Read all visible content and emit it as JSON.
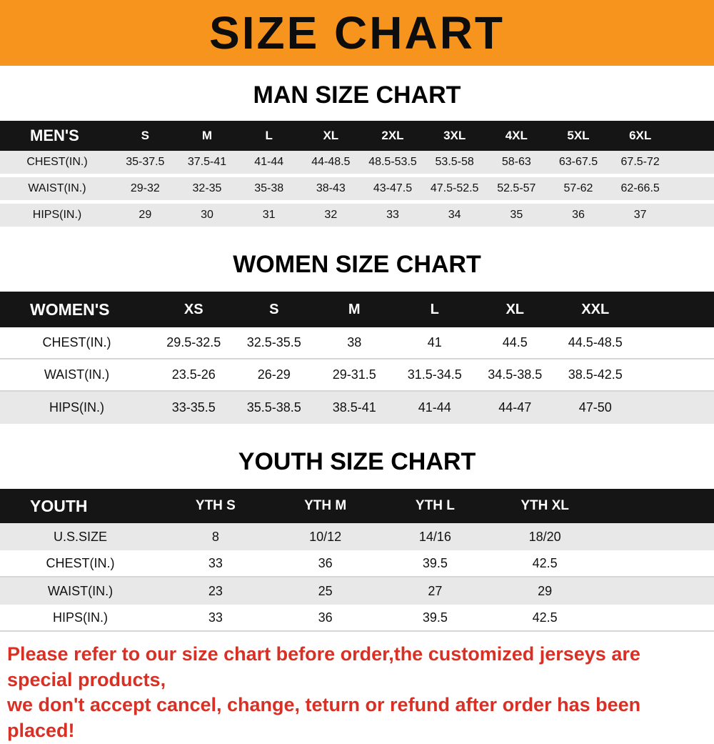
{
  "banner": {
    "title": "SIZE CHART"
  },
  "men": {
    "heading": "MAN SIZE CHART",
    "label": "MEN'S",
    "columns": [
      "S",
      "M",
      "L",
      "XL",
      "2XL",
      "3XL",
      "4XL",
      "5XL",
      "6XL"
    ],
    "rows": [
      {
        "label": "CHEST(IN.)",
        "values": [
          "35-37.5",
          "37.5-41",
          "41-44",
          "44-48.5",
          "48.5-53.5",
          "53.5-58",
          "58-63",
          "63-67.5",
          "67.5-72"
        ]
      },
      {
        "label": "WAIST(IN.)",
        "values": [
          "29-32",
          "32-35",
          "35-38",
          "38-43",
          "43-47.5",
          "47.5-52.5",
          "52.5-57",
          "57-62",
          "62-66.5"
        ]
      },
      {
        "label": "HIPS(IN.)",
        "values": [
          "29",
          "30",
          "31",
          "32",
          "33",
          "34",
          "35",
          "36",
          "37"
        ]
      }
    ]
  },
  "women": {
    "heading": "WOMEN SIZE CHART",
    "label": "WOMEN'S",
    "columns": [
      "XS",
      "S",
      "M",
      "L",
      "XL",
      "XXL"
    ],
    "rows": [
      {
        "label": "CHEST(IN.)",
        "values": [
          "29.5-32.5",
          "32.5-35.5",
          "38",
          "41",
          "44.5",
          "44.5-48.5"
        ]
      },
      {
        "label": "WAIST(IN.)",
        "values": [
          "23.5-26",
          "26-29",
          "29-31.5",
          "31.5-34.5",
          "34.5-38.5",
          "38.5-42.5"
        ]
      },
      {
        "label": "HIPS(IN.)",
        "values": [
          "33-35.5",
          "35.5-38.5",
          "38.5-41",
          "41-44",
          "44-47",
          "47-50"
        ]
      }
    ]
  },
  "youth": {
    "heading": "YOUTH SIZE CHART",
    "label": "YOUTH",
    "columns": [
      "YTH S",
      "YTH M",
      "YTH L",
      "YTH XL"
    ],
    "rows": [
      {
        "label": "U.S.SIZE",
        "values": [
          "8",
          "10/12",
          "14/16",
          "18/20"
        ]
      },
      {
        "label": "CHEST(IN.)",
        "values": [
          "33",
          "36",
          "39.5",
          "42.5"
        ]
      },
      {
        "label": "WAIST(IN.)",
        "values": [
          "23",
          "25",
          "27",
          "29"
        ]
      },
      {
        "label": "HIPS(IN.)",
        "values": [
          "33",
          "36",
          "39.5",
          "42.5"
        ]
      }
    ]
  },
  "footer": {
    "line1": "Please refer to our size chart before order,the customized jerseys are special products,",
    "line2": "we don't accept cancel, change, teturn or refund after order has been placed!"
  },
  "colors": {
    "banner_orange": "#F7941D",
    "table_header_black": "#151515",
    "row_gray": "#e8e8e8",
    "footer_red": "#d93025"
  }
}
